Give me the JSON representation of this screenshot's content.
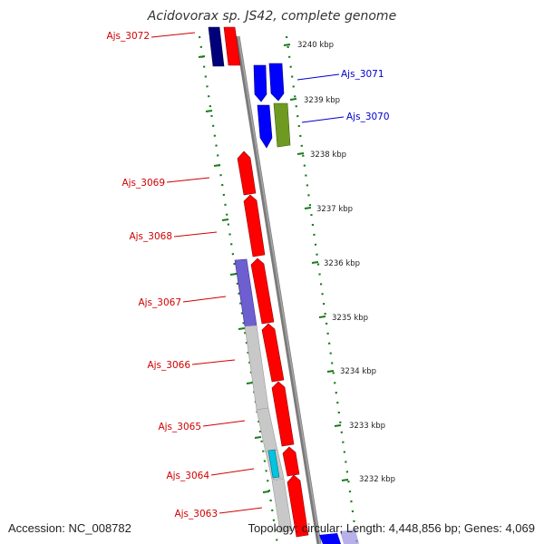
{
  "title": "Acidovorax sp. JS42, complete genome",
  "accession": "Accession: NC_008782",
  "summary": "Topology: circular; Length: 4,448,856 bp; Genes: 4,069",
  "colors": {
    "forward": "#ff0000",
    "reverse": "#0000ff",
    "forward_label": "#d00000",
    "reverse_label": "#0000cc",
    "navy": "#00007a",
    "purple": "#6e5fd0",
    "olive": "#6f9a22",
    "cyan": "#00c4e0",
    "gray": "#c8c8c8",
    "tick": "#1a7a1a",
    "backbone": "#7a7a7a"
  },
  "ruler": [
    "3240 kbp",
    "3239 kbp",
    "3238 kbp",
    "3237 kbp",
    "3236 kbp",
    "3235 kbp",
    "3234 kbp",
    "3233 kbp",
    "3232 kbp"
  ],
  "genes": [
    {
      "id": "Ajs_3072",
      "strand": "forward"
    },
    {
      "id": "Ajs_3071",
      "strand": "reverse"
    },
    {
      "id": "Ajs_3070",
      "strand": "reverse"
    },
    {
      "id": "Ajs_3069",
      "strand": "forward"
    },
    {
      "id": "Ajs_3068",
      "strand": "forward"
    },
    {
      "id": "Ajs_3067",
      "strand": "forward"
    },
    {
      "id": "Ajs_3066",
      "strand": "forward"
    },
    {
      "id": "Ajs_3065",
      "strand": "forward"
    },
    {
      "id": "Ajs_3064",
      "strand": "forward"
    },
    {
      "id": "Ajs_3063",
      "strand": "forward"
    }
  ]
}
